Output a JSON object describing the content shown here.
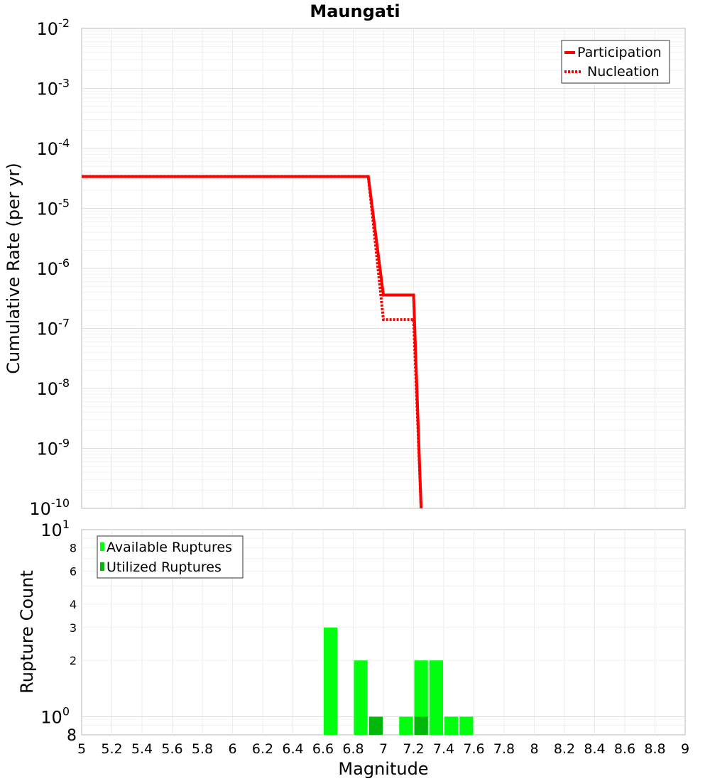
{
  "chart_data": [
    {
      "type": "line",
      "title": "Maungati",
      "xlabel": "",
      "ylabel": "Cumulative Rate (per yr)",
      "xlim": [
        5,
        9
      ],
      "ylim": [
        1e-10,
        0.01
      ],
      "yscale": "log",
      "grid": true,
      "legend_position": "top-right",
      "y_exponent_labels": [
        "-10",
        "-9",
        "-8",
        "-7",
        "-6",
        "-5",
        "-4",
        "-3",
        "-2"
      ],
      "series": [
        {
          "name": "Participation",
          "style": "solid",
          "color": "#ff0000",
          "x": [
            5.0,
            6.9,
            7.0,
            7.2,
            7.25
          ],
          "y": [
            3.4e-05,
            3.4e-05,
            3.6e-07,
            3.6e-07,
            1e-10
          ]
        },
        {
          "name": "Nucleation",
          "style": "dotted",
          "color": "#ff0000",
          "x": [
            5.0,
            6.9,
            7.0,
            7.2,
            7.25
          ],
          "y": [
            3.4e-05,
            3.4e-05,
            1.4e-07,
            1.4e-07,
            1e-10
          ]
        }
      ]
    },
    {
      "type": "bar",
      "title": "",
      "xlabel": "Magnitude",
      "ylabel": "Rupture Count",
      "xlim": [
        5,
        9
      ],
      "ylim": [
        0.8,
        10
      ],
      "yscale": "log",
      "grid": true,
      "legend_position": "top-left",
      "bin_width": 0.1,
      "x_ticks": [
        "5",
        "5.2",
        "5.4",
        "5.6",
        "5.8",
        "6",
        "6.2",
        "6.4",
        "6.6",
        "6.8",
        "7",
        "7.2",
        "7.4",
        "7.6",
        "7.8",
        "8",
        "8.2",
        "8.4",
        "8.6",
        "8.8",
        "9"
      ],
      "y_ticks_minor": [
        "2",
        "3",
        "4",
        "6",
        "8",
        "8"
      ],
      "y_exponent_labels": [
        "0",
        "1"
      ],
      "series": [
        {
          "name": "Available Ruptures",
          "color": "#00ff0e",
          "x": [
            6.65,
            6.85,
            7.15,
            7.25,
            7.35,
            7.45,
            7.55
          ],
          "values": [
            3,
            2,
            1,
            2,
            2,
            1,
            1
          ]
        },
        {
          "name": "Utilized Ruptures",
          "color": "#00b70a",
          "x": [
            6.95,
            7.25
          ],
          "values": [
            1,
            1
          ]
        }
      ]
    }
  ]
}
